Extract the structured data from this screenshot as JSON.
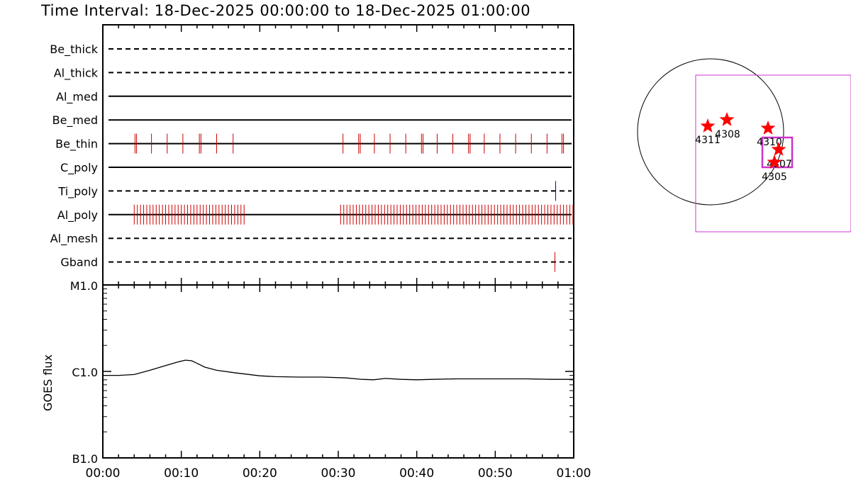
{
  "page": {
    "title": "Time Interval: 18-Dec-2025 00:00:00 to 18-Dec-2025 01:00:00"
  },
  "chart_data": [
    {
      "type": "event_raster",
      "time_range_min": [
        0,
        60
      ],
      "channels": [
        {
          "name": "Be_thick",
          "line": "dashed",
          "events": []
        },
        {
          "name": "Al_thick",
          "line": "dashed",
          "events": []
        },
        {
          "name": "Al_med",
          "line": "solid",
          "events": []
        },
        {
          "name": "Be_med",
          "line": "solid",
          "events": []
        },
        {
          "name": "Be_thin",
          "line": "solid",
          "color": "#cc0000",
          "events": [
            4.1,
            4.3,
            6.2,
            8.2,
            10.2,
            12.3,
            12.5,
            14.5,
            16.6,
            30.6,
            32.6,
            32.8,
            34.6,
            36.6,
            38.6,
            40.6,
            40.8,
            42.6,
            44.6,
            46.6,
            46.8,
            48.6,
            50.6,
            52.6,
            54.6,
            56.6,
            58.5,
            58.7
          ]
        },
        {
          "name": "C_poly",
          "line": "solid",
          "events": []
        },
        {
          "name": "Ti_poly",
          "line": "dashed",
          "color": "#0000cc",
          "events": [
            57.7
          ]
        },
        {
          "name": "Al_poly",
          "line": "solid",
          "color": "#cc0000",
          "events_ranges": [
            [
              4.0,
              18.2,
              0.4
            ],
            [
              30.3,
              59.9,
              0.4
            ]
          ]
        },
        {
          "name": "Al_mesh",
          "line": "dashed",
          "events": []
        },
        {
          "name": "Gband",
          "line": "dashed",
          "color": "#cc0000",
          "events": [
            57.6
          ]
        }
      ]
    },
    {
      "type": "line",
      "ylabel": "GOES flux",
      "yscale": "log",
      "ylim_labels": [
        "B1.0",
        "C1.0",
        "M1.0"
      ],
      "ylim": [
        1e-07,
        1e-05
      ],
      "x_ticks": [
        "00:00",
        "00:10",
        "00:20",
        "00:30",
        "00:40",
        "00:50",
        "01:00"
      ],
      "series": [
        {
          "x": [
            0,
            2,
            4,
            6,
            8,
            9.5,
            10.5,
            11.3,
            12,
            13,
            14.5,
            17,
            20,
            22,
            25,
            28,
            31,
            33,
            34.5,
            36,
            38,
            40,
            42,
            45,
            48,
            51,
            54,
            57,
            60
          ],
          "y": [
            9e-07,
            9e-07,
            9.2e-07,
            1.03e-06,
            1.17e-06,
            1.28e-06,
            1.35e-06,
            1.33e-06,
            1.24e-06,
            1.12e-06,
            1.03e-06,
            9.6e-07,
            8.9e-07,
            8.7e-07,
            8.6e-07,
            8.6e-07,
            8.4e-07,
            8.1e-07,
            8e-07,
            8.3e-07,
            8.1e-07,
            8e-07,
            8.1e-07,
            8.2e-07,
            8.2e-07,
            8.2e-07,
            8.2e-07,
            8.1e-07,
            8.1e-07
          ]
        }
      ]
    },
    {
      "type": "scatter",
      "region_numbers": [
        {
          "label": "4311"
        },
        {
          "label": "4308"
        },
        {
          "label": "4310"
        },
        {
          "label": "4307"
        },
        {
          "label": "4305"
        }
      ]
    }
  ]
}
